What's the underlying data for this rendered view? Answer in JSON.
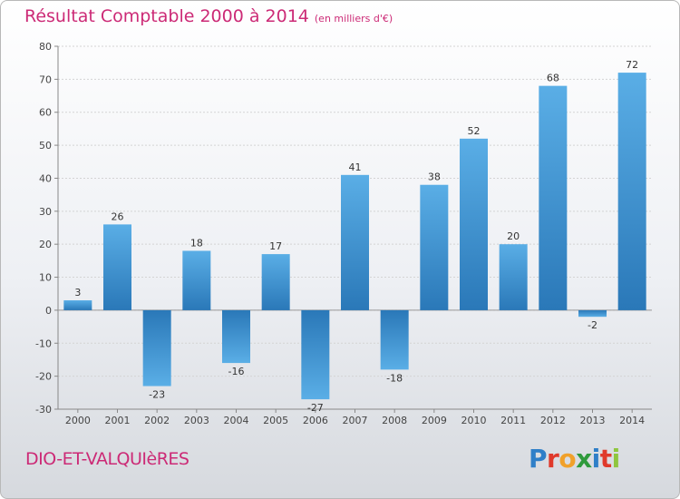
{
  "header": {
    "title": "Résultat Comptable 2000 à 2014",
    "subtitle": "(en milliers d'€)"
  },
  "footer": {
    "commune": "DIO-ET-VALQUIèRES",
    "logo_letters": [
      "P",
      "r",
      "o",
      "x",
      "i",
      "t",
      "i"
    ],
    "logo_colors": [
      "#2f7fc8",
      "#e0392b",
      "#f1a12a",
      "#2f9a3c",
      "#2f7fc8",
      "#e0392b",
      "#8fc63f"
    ]
  },
  "colors": {
    "bar_dark": "#2a78b8",
    "bar_light": "#5aaee6",
    "title": "#cc2a76"
  },
  "chart_data": {
    "type": "bar",
    "title": "Résultat Comptable 2000 à 2014",
    "xlabel": "",
    "ylabel": "",
    "ylim": [
      -30,
      80
    ],
    "yticks": [
      80,
      70,
      60,
      50,
      40,
      30,
      20,
      10,
      0,
      -10,
      -20,
      -30
    ],
    "categories": [
      "2000",
      "2001",
      "2002",
      "2003",
      "2004",
      "2005",
      "2006",
      "2007",
      "2008",
      "2009",
      "2010",
      "2011",
      "2012",
      "2013",
      "2014"
    ],
    "values": [
      3,
      26,
      -23,
      18,
      -16,
      17,
      -27,
      41,
      -18,
      38,
      52,
      20,
      68,
      -2,
      72
    ],
    "grid": true
  }
}
